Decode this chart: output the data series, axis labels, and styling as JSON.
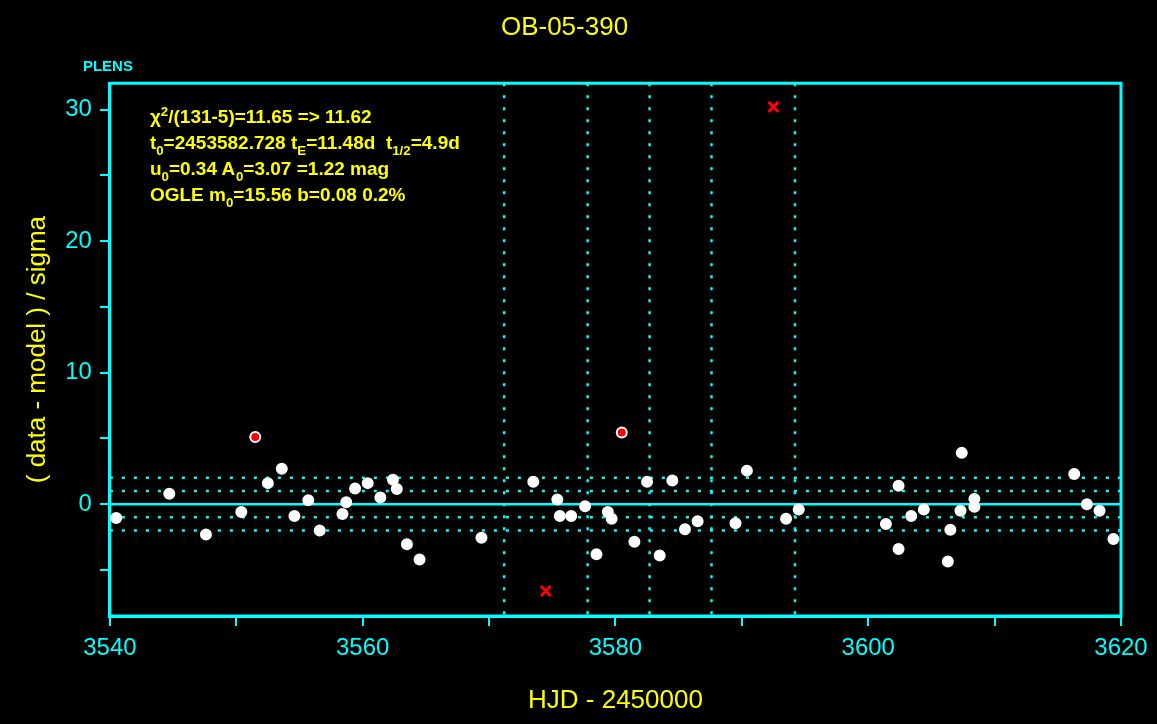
{
  "chart_data": {
    "type": "scatter",
    "title": "OB-05-390",
    "xlabel": "HJD - 2450000",
    "ylabel": "( data - model ) / sigma",
    "annotations": [
      "PLENS",
      "χ$^{2}$/(131-5)=11.65 => 11.62",
      "t$_{0}$=2453582.728 t$_{E}$=11.48d  t$_{1/2}$=4.9d",
      "u$_{0}$=0.34 A$_{0}$=3.07 =1.22 mag",
      "OGLE m$_{0}$=15.56 b=0.08 0.2%"
    ],
    "xlim": [
      3540,
      3620
    ],
    "xticks": [
      3540,
      {
        "value": 3550,
        "label": null
      },
      3560,
      {
        "value": 3570,
        "label": null
      },
      3580,
      {
        "value": 3590,
        "label": null
      },
      3600,
      {
        "value": 3610,
        "label": null
      },
      3620
    ],
    "ylim": [
      -8.5,
      32
    ],
    "yticks": [
      {
        "value": -5,
        "label": null
      },
      0,
      {
        "value": 5,
        "label": null
      },
      10,
      {
        "value": 15,
        "label": null
      },
      20,
      {
        "value": 25,
        "label": null
      },
      30
    ],
    "legend": false,
    "grid": false,
    "ref_lines": [
      {
        "axis": "y",
        "value": 0,
        "color": "#00ffff",
        "line_style": "solid"
      },
      {
        "axis": "y",
        "value": 1,
        "color": "#00ffff",
        "line_style": "dotted"
      },
      {
        "axis": "y",
        "value": 2,
        "color": "#00ffff",
        "line_style": "dotted"
      },
      {
        "axis": "y",
        "value": -1,
        "color": "#00ffff",
        "line_style": "dotted"
      },
      {
        "axis": "y",
        "value": -2,
        "color": "#00ffff",
        "line_style": "dotted"
      },
      {
        "axis": "x",
        "value": 3571.2,
        "color": "#00ffff",
        "line_style": "dotted"
      },
      {
        "axis": "x",
        "value": 3577.8,
        "color": "#00ffff",
        "line_style": "dotted"
      },
      {
        "axis": "x",
        "value": 3582.7,
        "color": "#00ffff",
        "line_style": "dotted"
      },
      {
        "axis": "x",
        "value": 3587.6,
        "color": "#00ffff",
        "line_style": "dotted"
      },
      {
        "axis": "x",
        "value": 3594.2,
        "color": "#00ffff",
        "line_style": "dotted"
      }
    ],
    "series": [
      {
        "type": "scatter",
        "color": "#ffffff",
        "marker": "circle",
        "x": [
          3540.5,
          3544.7,
          3547.6,
          3550.4,
          3552.5,
          3553.6,
          3554.6,
          3555.7,
          3556.6,
          3558.4,
          3558.7,
          3559.4,
          3560.4,
          3561.4,
          3562.4,
          3562.7,
          3563.5,
          3564.5,
          3569.4,
          3573.5,
          3575.4,
          3575.6,
          3576.5,
          3577.6,
          3578.5,
          3579.4,
          3579.7,
          3581.5,
          3582.5,
          3583.5,
          3584.5,
          3585.5,
          3586.5,
          3589.5,
          3590.4,
          3593.5,
          3594.5,
          3601.4,
          3602.4,
          3602.4,
          3603.4,
          3604.4,
          3606.3,
          3606.5,
          3607.3,
          3607.4,
          3608.4,
          3608.4,
          3616.3,
          3617.3,
          3618.3,
          3619.4
        ],
        "values": [
          -1.05,
          0.8,
          -2.3,
          -0.6,
          1.6,
          2.7,
          -0.9,
          0.3,
          -2.0,
          -0.75,
          0.15,
          1.2,
          1.6,
          0.5,
          1.85,
          1.15,
          -3.05,
          -4.2,
          -2.55,
          1.7,
          0.35,
          -0.9,
          -0.9,
          -0.15,
          -3.8,
          -0.6,
          -1.1,
          -2.85,
          1.7,
          -3.9,
          1.8,
          -1.9,
          -1.3,
          -1.45,
          2.55,
          -1.1,
          -0.4,
          -1.5,
          -3.4,
          1.4,
          -0.9,
          -0.4,
          -4.35,
          -1.95,
          -0.5,
          3.9,
          0.4,
          -0.2,
          2.3,
          0.0,
          -0.5,
          -2.65
        ]
      },
      {
        "type": "scatter",
        "color": "#ff0000",
        "marker": "circle",
        "x": [
          3551.5,
          3580.5
        ],
        "values": [
          5.1,
          5.45
        ]
      },
      {
        "type": "scatter",
        "color": "#ff0000",
        "marker": "cross",
        "x": [
          3574.5,
          3592.5
        ],
        "values": [
          -6.6,
          30.2
        ]
      }
    ]
  }
}
